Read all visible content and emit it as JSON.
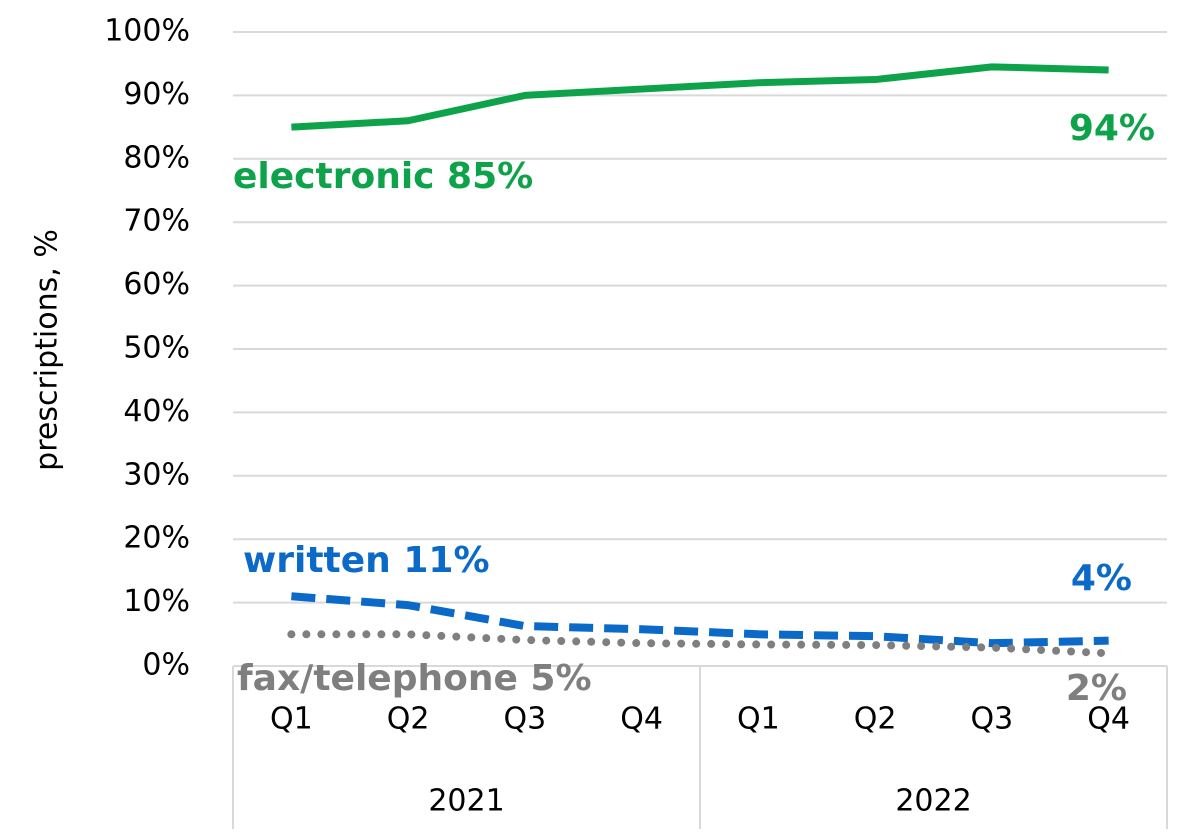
{
  "chart_data": {
    "type": "line",
    "ylabel": "prescriptions, %",
    "categories": [
      "Q1",
      "Q2",
      "Q3",
      "Q4",
      "Q1",
      "Q2",
      "Q3",
      "Q4"
    ],
    "groups": [
      "2021",
      "2022"
    ],
    "ylim": [
      0,
      100
    ],
    "yticks": [
      {
        "value": 0,
        "label": "0%"
      },
      {
        "value": 10,
        "label": "10%"
      },
      {
        "value": 20,
        "label": "20%"
      },
      {
        "value": 30,
        "label": "30%"
      },
      {
        "value": 40,
        "label": "40%"
      },
      {
        "value": 50,
        "label": "50%"
      },
      {
        "value": 60,
        "label": "60%"
      },
      {
        "value": 70,
        "label": "70%"
      },
      {
        "value": 80,
        "label": "80%"
      },
      {
        "value": 90,
        "label": "90%"
      },
      {
        "value": 100,
        "label": "100%"
      }
    ],
    "grid": true,
    "series": [
      {
        "color": "#0ea34a",
        "dash": "solid",
        "values": [
          85,
          86,
          90,
          91,
          92,
          92.5,
          94.5,
          94
        ],
        "value_labels": [
          "electronic 85%",
          null,
          null,
          null,
          null,
          null,
          null,
          "94%"
        ]
      },
      {
        "color": "#0b69c7",
        "dash": "dashed",
        "values": [
          11,
          9.6,
          6.3,
          5.8,
          5,
          4.7,
          3.6,
          4
        ],
        "value_labels": [
          "written 11%",
          null,
          null,
          null,
          null,
          null,
          null,
          "4%"
        ]
      },
      {
        "color": "#7f7f7f",
        "dash": "dotted",
        "values": [
          5,
          5,
          4.1,
          3.6,
          3.4,
          3.3,
          2.9,
          2
        ],
        "value_labels": [
          "fax/telephone 5%",
          null,
          null,
          null,
          null,
          null,
          null,
          "2%"
        ]
      }
    ]
  }
}
